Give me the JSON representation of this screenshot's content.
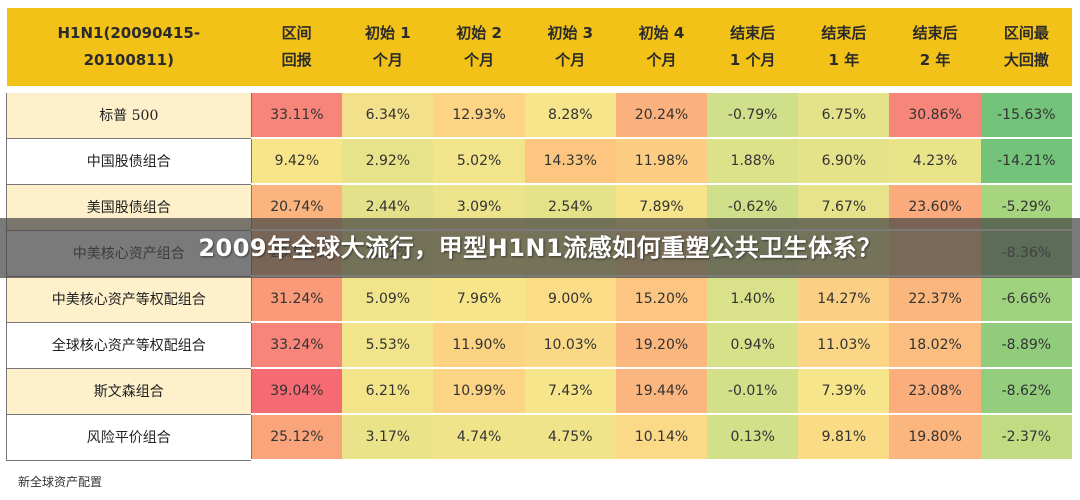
{
  "table": {
    "headers": [
      [
        "H1N1(20090415-",
        "20100811)"
      ],
      [
        "区间",
        "回报"
      ],
      [
        "初始 1",
        "个月"
      ],
      [
        "初始 2",
        "个月"
      ],
      [
        "初始 3",
        "个月"
      ],
      [
        "初始 4",
        "个月"
      ],
      [
        "结束后",
        "1 个月"
      ],
      [
        "结束后",
        "1 年"
      ],
      [
        "结束后",
        "2 年"
      ],
      [
        "区间最",
        "大回撤"
      ]
    ],
    "rows": [
      {
        "name": "标普 500",
        "shaded": true,
        "values": [
          "33.11%",
          "6.34%",
          "12.93%",
          "8.28%",
          "20.24%",
          "-0.79%",
          "6.75%",
          "30.86%",
          "-15.63%"
        ],
        "colors": [
          "#f8857a",
          "#f3e08a",
          "#fcd484",
          "#f6e58a",
          "#fbb17d",
          "#d0e08a",
          "#e5e38a",
          "#f8857a",
          "#74c37a"
        ]
      },
      {
        "name": "中国股债组合",
        "shaded": false,
        "values": [
          "9.42%",
          "2.92%",
          "5.02%",
          "14.33%",
          "11.98%",
          "1.88%",
          "6.90%",
          "4.23%",
          "-14.21%"
        ],
        "colors": [
          "#f8e58a",
          "#e7e38a",
          "#f1e48a",
          "#fcc681",
          "#fccd83",
          "#dbe28a",
          "#e5e38a",
          "#e9e38a",
          "#74c37a"
        ]
      },
      {
        "name": "美国股债组合",
        "shaded": true,
        "values": [
          "20.74%",
          "2.44%",
          "3.09%",
          "2.54%",
          "7.89%",
          "-0.62%",
          "7.67%",
          "23.60%",
          "-5.29%"
        ],
        "colors": [
          "#fbb47e",
          "#e3e28a",
          "#ece38a",
          "#e5e38a",
          "#f7e48a",
          "#d0e08a",
          "#e6e38a",
          "#fbab7c",
          "#a7d47e"
        ]
      },
      {
        "name": "中美核心资产组合",
        "shaded": false,
        "values": [
          "20.51%",
          "2.71%",
          "",
          "",
          "",
          "",
          "",
          "",
          "-8.36%"
        ],
        "colors": [
          "#fbb47e",
          "#e6e38a",
          "#efe48a",
          "#e9e38a",
          "#fad084",
          "#d8e18a",
          "#e8e38a",
          "#fbc481",
          "#95cd7d"
        ]
      },
      {
        "name": "中美核心资产等权配组合",
        "shaded": true,
        "values": [
          "31.24%",
          "5.09%",
          "7.96%",
          "9.00%",
          "15.20%",
          "1.40%",
          "14.27%",
          "22.37%",
          "-6.66%"
        ],
        "colors": [
          "#f99a79",
          "#f1e48a",
          "#f8e58a",
          "#fbdd88",
          "#fcc581",
          "#d9e18a",
          "#fbcf84",
          "#fbb67e",
          "#9fd17e"
        ]
      },
      {
        "name": "全球核心资产等权配组合",
        "shaded": false,
        "values": [
          "33.24%",
          "5.53%",
          "11.90%",
          "10.03%",
          "19.20%",
          "0.94%",
          "11.03%",
          "18.02%",
          "-8.89%"
        ],
        "colors": [
          "#f8857a",
          "#f2e48a",
          "#fcd283",
          "#fad986",
          "#fbb77e",
          "#d6e18a",
          "#fad686",
          "#fbbd80",
          "#91cc7d"
        ]
      },
      {
        "name": "斯文森组合",
        "shaded": true,
        "values": [
          "39.04%",
          "6.21%",
          "10.99%",
          "7.43%",
          "19.44%",
          "-0.01%",
          "7.39%",
          "23.08%",
          "-8.62%"
        ],
        "colors": [
          "#f66b73",
          "#f3e48a",
          "#fbd485",
          "#f6e58a",
          "#fbb57e",
          "#d2e08a",
          "#f6e58a",
          "#fbad7c",
          "#93cd7d"
        ]
      },
      {
        "name": "风险平价组合",
        "shaded": false,
        "values": [
          "25.12%",
          "3.17%",
          "4.74%",
          "4.75%",
          "10.14%",
          "0.13%",
          "9.81%",
          "19.80%",
          "-2.37%"
        ],
        "colors": [
          "#faa47b",
          "#ebe38a",
          "#f0e48a",
          "#f0e48a",
          "#fad987",
          "#d3e08a",
          "#fadc87",
          "#fbb67e",
          "#c1db83"
        ]
      }
    ]
  },
  "source": "新全球资产配置",
  "banner_title": "2009年全球大流行，甲型H1N1流感如何重塑公共卫生体系？",
  "colors": {
    "header_bg": "#f3c218",
    "name_shade": "#fdf0cb",
    "banner_bg": "rgba(70,70,70,0.72)"
  }
}
